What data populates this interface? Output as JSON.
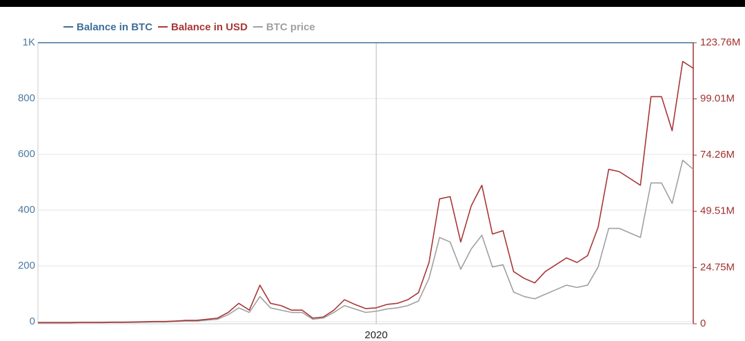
{
  "chart_data": {
    "type": "line",
    "categories": [
      null,
      null,
      null,
      null,
      null,
      null,
      null,
      null,
      null,
      null,
      null,
      null,
      null,
      null,
      null,
      null,
      null,
      null,
      null,
      null,
      null,
      null,
      null,
      null,
      null,
      null,
      null,
      null,
      null,
      null,
      null,
      null,
      "2020",
      null,
      null,
      null,
      null,
      null,
      null,
      null,
      null,
      null,
      null,
      null,
      null,
      null,
      null,
      null,
      null,
      null,
      null,
      null,
      null,
      null,
      null,
      null,
      null,
      null,
      null,
      null,
      null,
      null,
      null
    ],
    "series": [
      {
        "name": "Balance in BTC",
        "color": "#3f6f9a",
        "axis": "y",
        "values": [
          1000,
          1000,
          1000,
          1000,
          1000,
          1000,
          1000,
          1000,
          1000,
          1000,
          1000,
          1000,
          1000,
          1000,
          1000,
          1000,
          1000,
          1000,
          1000,
          1000,
          1000,
          1000,
          1000,
          1000,
          1000,
          1000,
          1000,
          1000,
          1000,
          1000,
          1000,
          1000,
          1000,
          1000,
          1000,
          1000,
          1000,
          1000,
          1000,
          1000,
          1000,
          1000,
          1000,
          1000,
          1000,
          1000,
          1000,
          1000,
          1000,
          1000,
          1000,
          1000,
          1000,
          1000,
          1000,
          1000,
          1000,
          1000,
          1000,
          1000,
          1000,
          1000,
          1000
        ]
      },
      {
        "name": "Balance in USD",
        "color": "#a83636",
        "axis": "y2",
        "values": [
          0.5,
          0.5,
          0.5,
          0.5,
          0.6,
          0.6,
          0.6,
          0.7,
          0.7,
          0.8,
          0.9,
          1,
          1,
          1.2,
          1.5,
          1.5,
          2,
          2.5,
          5,
          9,
          6,
          17,
          9,
          8,
          6,
          6,
          2.5,
          3,
          6,
          10.6,
          8.5,
          6.7,
          7,
          8.5,
          9,
          10.6,
          13.7,
          27,
          55,
          56,
          36,
          52,
          61,
          39.5,
          41,
          23,
          20,
          18,
          23,
          26,
          29,
          27,
          30,
          42.5,
          68,
          67,
          64,
          61,
          100,
          100,
          85,
          115.5,
          112.5
        ]
      },
      {
        "name": "BTC price",
        "color": "#a0a0a0",
        "axis": "y2",
        "values": [
          0.4,
          0.4,
          0.4,
          0.4,
          0.5,
          0.5,
          0.5,
          0.6,
          0.6,
          0.6,
          0.7,
          0.8,
          0.8,
          1,
          1.2,
          1.2,
          1.6,
          2,
          4,
          7,
          5,
          12,
          7,
          6,
          5,
          5,
          2,
          2.5,
          5,
          8,
          6.5,
          5,
          5.5,
          6.5,
          7,
          8,
          10,
          20,
          38,
          36,
          24,
          33,
          39,
          25,
          26,
          14,
          12,
          11,
          13,
          15,
          17,
          16,
          17,
          25,
          42,
          42,
          40,
          38,
          62,
          62,
          53,
          72,
          68
        ]
      }
    ],
    "ylim": [
      0,
      1000
    ],
    "yticks": [
      0,
      200,
      400,
      600,
      800,
      {
        "value": 1000,
        "label": "1K"
      }
    ],
    "y2lim": [
      0,
      123.76
    ],
    "y2ticks": [
      0,
      {
        "value": 24.75,
        "label": "24.75M"
      },
      {
        "value": 49.51,
        "label": "49.51M"
      },
      {
        "value": 74.26,
        "label": "74.26M"
      },
      {
        "value": 99.01,
        "label": "99.01M"
      },
      {
        "value": 123.76,
        "label": "123.76M"
      }
    ],
    "grid": true
  }
}
